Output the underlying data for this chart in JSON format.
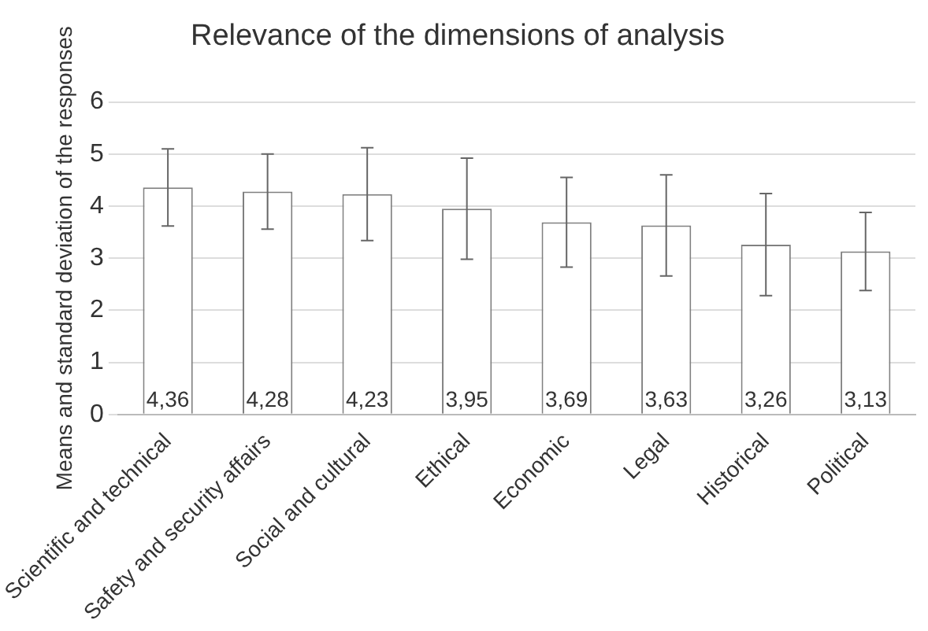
{
  "chart_data": {
    "type": "bar",
    "title": "Relevance of the dimensions of analysis",
    "ylabel": "Means and standard deviation of the responses",
    "categories": [
      "Scientific and technical",
      "Safety and security affairs",
      "Social and cultural",
      "Ethical",
      "Economic",
      "Legal",
      "Historical",
      "Political"
    ],
    "values": [
      4.36,
      4.28,
      4.23,
      3.95,
      3.69,
      3.63,
      3.26,
      3.13
    ],
    "errors": [
      0.74,
      0.72,
      0.89,
      0.97,
      0.86,
      0.97,
      0.98,
      0.75
    ],
    "value_labels": [
      "4,36",
      "4,28",
      "4,23",
      "3,95",
      "3,69",
      "3,63",
      "3,26",
      "3,13"
    ],
    "color": "#ffffff",
    "ylim": [
      0,
      6
    ],
    "yticks": [
      0,
      1,
      2,
      3,
      4,
      5,
      6
    ],
    "grid": "y",
    "legend": false
  }
}
